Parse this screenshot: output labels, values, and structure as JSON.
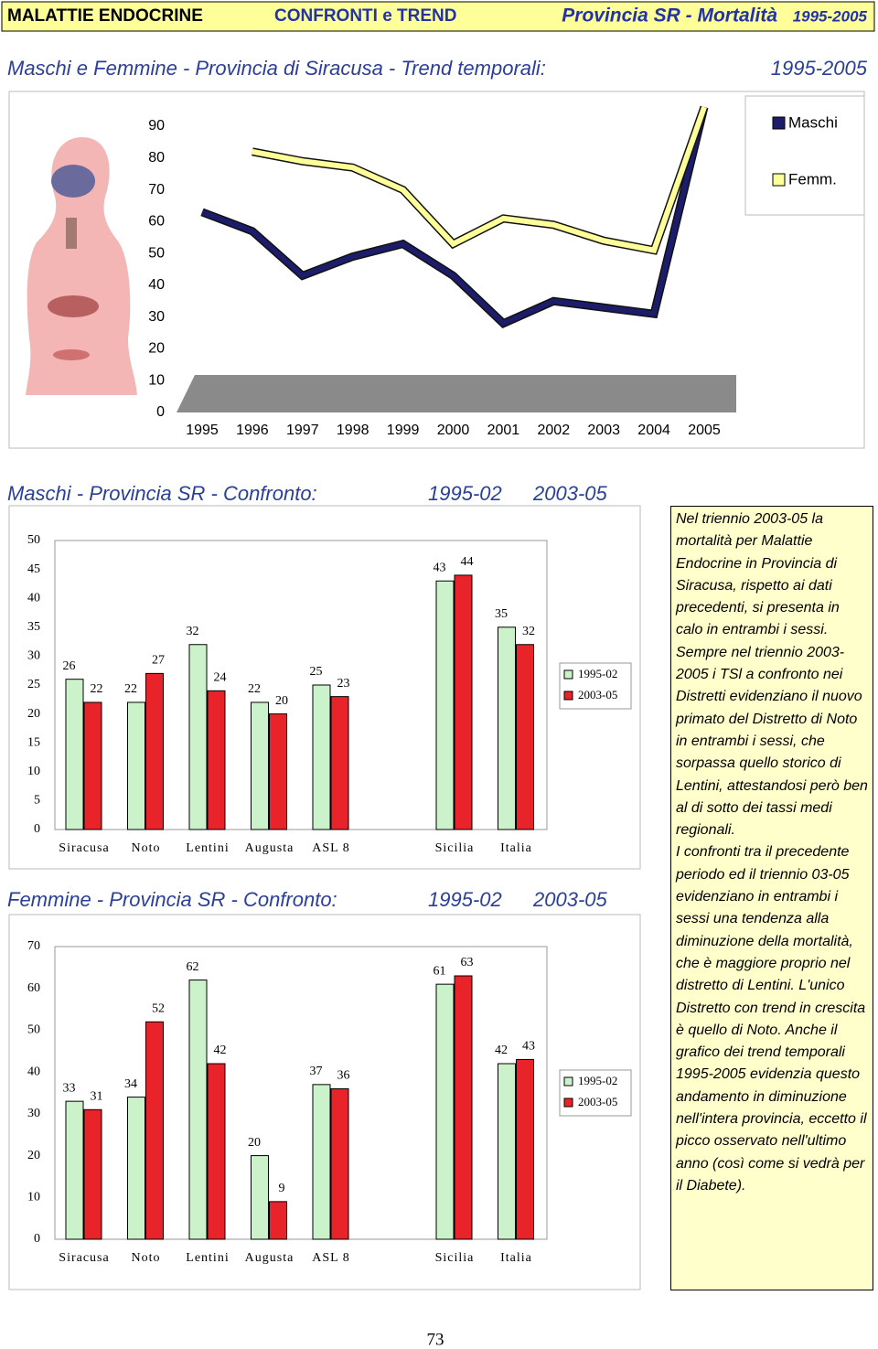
{
  "header": {
    "left": "MALATTIE ENDOCRINE",
    "middle": "CONFRONTI e TREND",
    "right": "Provincia SR - Mortalità",
    "right_period": "1995-2005"
  },
  "chart_data": [
    {
      "type": "line",
      "title": "Maschi e Femmine - Provincia di Siracusa - Trend temporali:",
      "subtitle": "1995-2005",
      "categories": [
        "1995",
        "1996",
        "1997",
        "1998",
        "1999",
        "2000",
        "2001",
        "2002",
        "2003",
        "2004",
        "2005"
      ],
      "series": [
        {
          "name": "Maschi",
          "color": "#1c1c6b",
          "values": [
            63,
            57,
            43,
            49,
            53,
            43,
            28,
            35,
            33,
            31,
            96
          ]
        },
        {
          "name": "Femm.",
          "color": "#ffff99",
          "values": [
            null,
            82,
            79,
            77,
            70,
            53,
            61,
            59,
            54,
            51,
            96
          ]
        }
      ],
      "ylim": [
        0,
        90
      ],
      "yticks": [
        0,
        10,
        20,
        30,
        40,
        50,
        60,
        70,
        80,
        90
      ],
      "legend": "top-right"
    },
    {
      "type": "bar",
      "title": "Maschi - Provincia SR - Confronto:",
      "categories": [
        "Siracusa",
        "Noto",
        "Lentini",
        "Augusta",
        "ASL 8",
        null,
        "Sicilia",
        "Italia"
      ],
      "series": [
        {
          "name": "1995-02",
          "color": "#ccf2cc",
          "values": [
            26,
            22,
            32,
            22,
            25,
            null,
            43,
            35
          ]
        },
        {
          "name": "2003-05",
          "color": "#e8242a",
          "values": [
            22,
            27,
            24,
            20,
            23,
            null,
            44,
            32
          ]
        }
      ],
      "ylim": [
        0,
        50
      ],
      "yticks": [
        0,
        5,
        10,
        15,
        20,
        25,
        30,
        35,
        40,
        45,
        50
      ],
      "legend": "right"
    },
    {
      "type": "bar",
      "title": "Femmine - Provincia SR - Confronto:",
      "categories": [
        "Siracusa",
        "Noto",
        "Lentini",
        "Augusta",
        "ASL 8",
        null,
        "Sicilia",
        "Italia"
      ],
      "series": [
        {
          "name": "1995-02",
          "color": "#ccf2cc",
          "values": [
            33,
            34,
            62,
            20,
            37,
            null,
            61,
            42
          ]
        },
        {
          "name": "2003-05",
          "color": "#e8242a",
          "values": [
            31,
            52,
            42,
            9,
            36,
            null,
            63,
            43
          ]
        }
      ],
      "ylim": [
        0,
        70
      ],
      "yticks": [
        0,
        10,
        20,
        30,
        40,
        50,
        60,
        70
      ],
      "legend": "right"
    }
  ],
  "text_box": {
    "paragraphs": [
      "Nel triennio 2003-05 la mortalità per Malattie Endocrine in Provincia di Siracusa, rispetto ai dati precedenti, si presenta in calo in entrambi i sessi.",
      "Sempre nel triennio 2003-2005 i TSl a confronto nei Distretti evidenziano il nuovo primato del Distretto di Noto in entrambi i sessi, che sorpassa quello storico di Lentini, attestandosi però ben al di sotto dei tassi medi regionali.",
      "I confronti tra il precedente periodo ed il triennio 03-05 evidenziano in entrambi i sessi una tendenza alla diminuzione della mortalità, che è maggiore proprio nel distretto di Lentini. L'unico Distretto con trend in crescita è quello di Noto. Anche il grafico dei trend temporali 1995-2005 evidenzia questo andamento in diminuzione nell'intera provincia, eccetto il picco osservato nell'ultimo anno (così come si vedrà per il Diabete)."
    ]
  },
  "page_number": "73"
}
